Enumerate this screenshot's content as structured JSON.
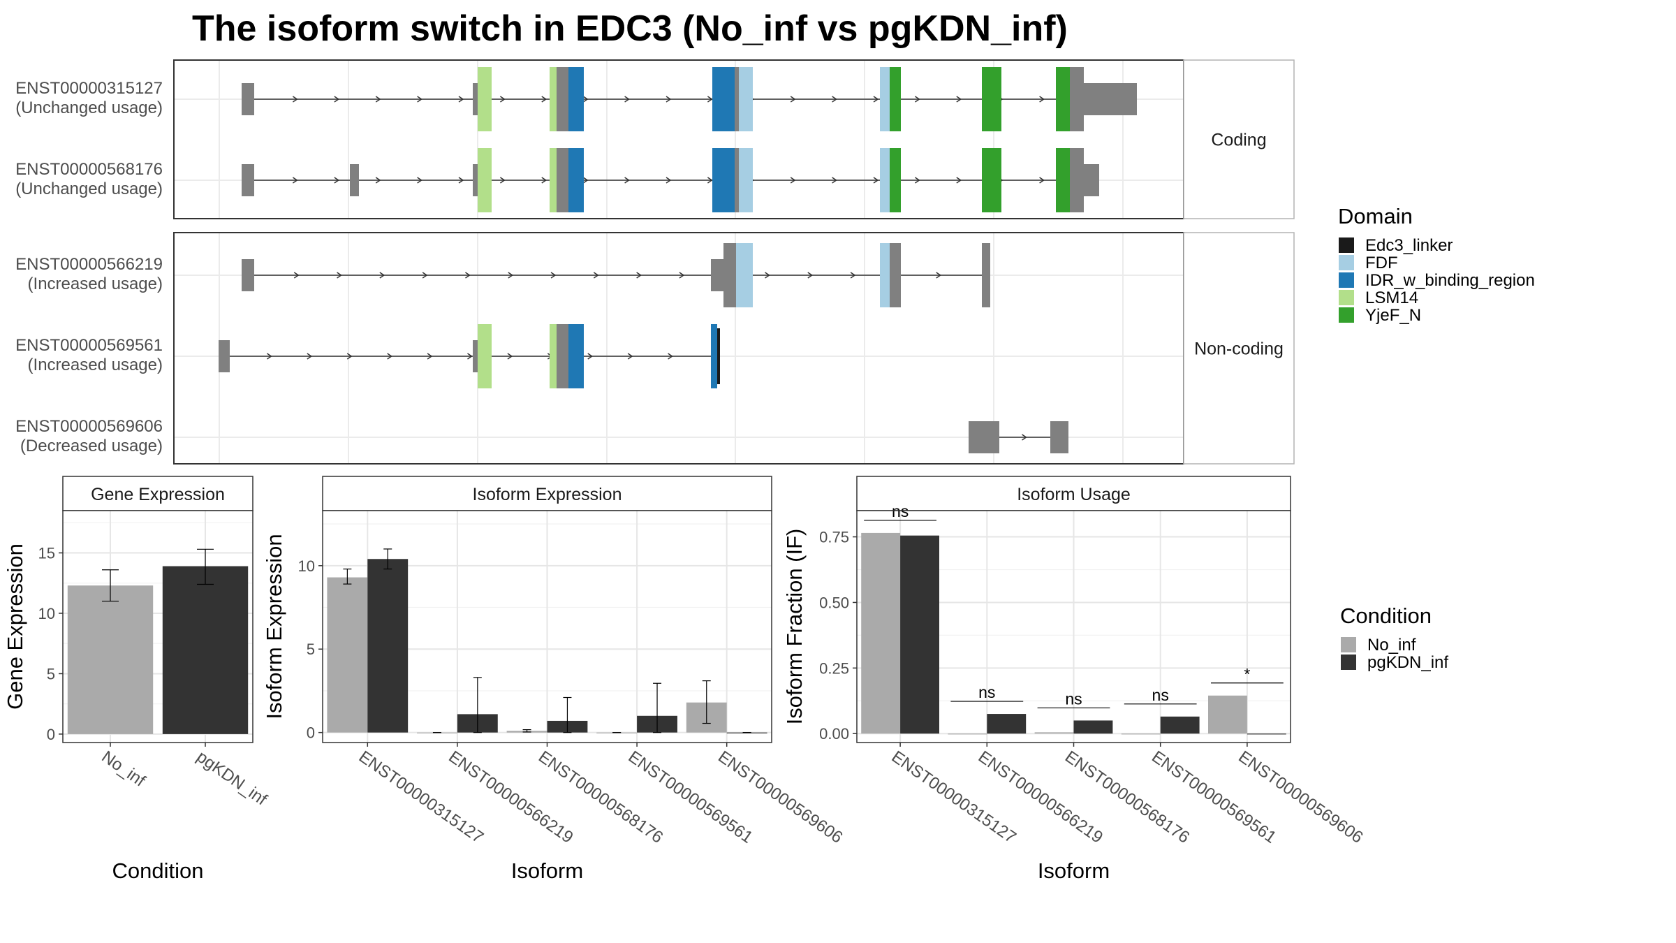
{
  "title": "The isoform switch in EDC3 (No_inf vs pgKDN_inf)",
  "colors": {
    "Edc3_linker": "#1a1a1a",
    "FDF": "#a6cee3",
    "IDR_w_binding_region": "#1f78b4",
    "LSM14": "#b2df8a",
    "YjeF_N": "#33a02c",
    "no_domain": "#808080",
    "No_inf": "#aaaaaa",
    "pgKDN_inf": "#333333"
  },
  "isoform_structure": {
    "facets": [
      "Coding",
      "Non-coding"
    ],
    "tracks": [
      {
        "id": "ENST00000315127",
        "usage": "(Unchanged usage)",
        "facet": "Coding"
      },
      {
        "id": "ENST00000568176",
        "usage": "(Unchanged usage)",
        "facet": "Coding"
      },
      {
        "id": "ENST00000566219",
        "usage": "(Increased usage)",
        "facet": "Non-coding"
      },
      {
        "id": "ENST00000569561",
        "usage": "(Increased usage)",
        "facet": "Non-coding"
      },
      {
        "id": "ENST00000569606",
        "usage": "(Decreased usage)",
        "facet": "Non-coding"
      }
    ]
  },
  "legend_domain": {
    "title": "Domain",
    "items": [
      "Edc3_linker",
      "FDF",
      "IDR_w_binding_region",
      "LSM14",
      "YjeF_N"
    ]
  },
  "legend_condition": {
    "title": "Condition",
    "items": [
      "No_inf",
      "pgKDN_inf"
    ]
  },
  "chart_data": [
    {
      "type": "bar",
      "title": "Gene Expression",
      "xlabel": "Condition",
      "ylabel": "Gene Expression",
      "categories": [
        "No_inf",
        "pgKDN_inf"
      ],
      "values": [
        12.3,
        13.9
      ],
      "error": [
        [
          11.0,
          13.6
        ],
        [
          12.4,
          15.3
        ]
      ],
      "ylim": [
        -0.7,
        18.5
      ],
      "yticks": [
        0,
        5,
        10,
        15
      ],
      "grid": true
    },
    {
      "type": "bar",
      "title": "Isoform Expression",
      "xlabel": "Isoform",
      "ylabel": "Isoform Expression",
      "categories": [
        "ENST00000315127",
        "ENST00000566219",
        "ENST00000568176",
        "ENST00000569561",
        "ENST00000569606"
      ],
      "series": [
        {
          "name": "No_inf",
          "values": [
            9.3,
            0,
            0.1,
            0,
            1.8
          ],
          "error": [
            [
              8.9,
              9.8
            ],
            [
              0,
              0
            ],
            [
              0.03,
              0.17
            ],
            [
              0,
              0
            ],
            [
              0.55,
              3.1
            ]
          ]
        },
        {
          "name": "pgKDN_inf",
          "values": [
            10.4,
            1.1,
            0.7,
            1.0,
            0
          ]
        }
      ],
      "series_error": [
        [
          [
            8.9,
            9.8
          ],
          [
            0,
            0
          ],
          [
            0.03,
            0.17
          ],
          [
            0,
            0
          ],
          [
            0.55,
            3.1
          ]
        ],
        [
          [
            9.8,
            11.0
          ],
          [
            0,
            3.3
          ],
          [
            0,
            2.1
          ],
          [
            0,
            2.95
          ],
          [
            0,
            0
          ]
        ]
      ],
      "ylim": [
        -0.6,
        13.3
      ],
      "yticks": [
        0,
        5,
        10
      ],
      "grid": true
    },
    {
      "type": "bar",
      "title": "Isoform Usage",
      "xlabel": "Isoform",
      "ylabel": "Isoform Fraction (IF)",
      "categories": [
        "ENST00000315127",
        "ENST00000566219",
        "ENST00000568176",
        "ENST00000569561",
        "ENST00000569606"
      ],
      "series": [
        {
          "name": "No_inf",
          "values": [
            0.765,
            0,
            0.005,
            0,
            0.145
          ]
        },
        {
          "name": "pgKDN_inf",
          "values": [
            0.755,
            0.075,
            0.05,
            0.065,
            0
          ]
        }
      ],
      "significance": [
        "ns",
        "ns",
        "ns",
        "ns",
        "*"
      ],
      "ylim": [
        -0.034,
        0.85
      ],
      "yticks": [
        "0.00",
        "0.25",
        "0.50",
        "0.75"
      ],
      "grid": true
    }
  ]
}
